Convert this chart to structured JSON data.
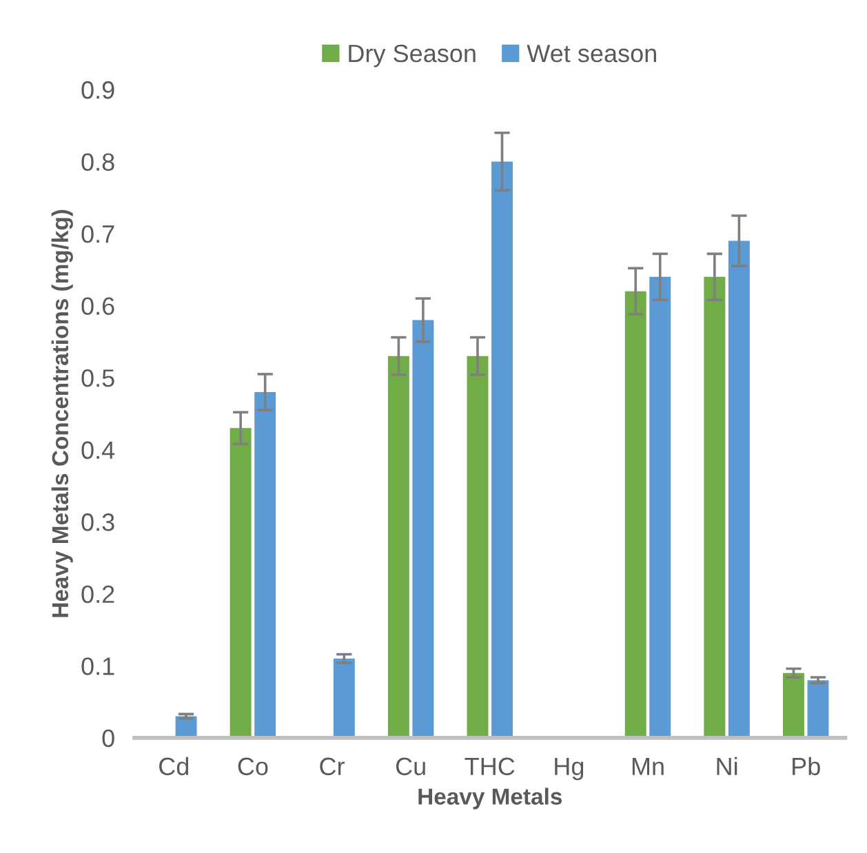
{
  "chart_data": {
    "type": "bar",
    "xlabel": "Heavy Metals",
    "ylabel": "Heavy Metals Concentrations (mg/kg)",
    "categories": [
      "Cd",
      "Co",
      "Cr",
      "Cu",
      "THC",
      "Hg",
      "Mn",
      "Ni",
      "Pb"
    ],
    "series": [
      {
        "name": "Dry Season",
        "color": "#70ad47",
        "values": [
          null,
          0.43,
          null,
          0.53,
          0.53,
          null,
          0.62,
          0.64,
          0.09
        ],
        "errors": [
          null,
          0.022,
          null,
          0.026,
          0.026,
          null,
          0.032,
          0.032,
          0.006
        ]
      },
      {
        "name": "Wet season",
        "color": "#5b9bd5",
        "values": [
          0.03,
          0.48,
          0.11,
          0.58,
          0.8,
          null,
          0.64,
          0.69,
          0.08
        ],
        "errors": [
          0.003,
          0.025,
          0.006,
          0.03,
          0.04,
          null,
          0.032,
          0.035,
          0.004
        ]
      }
    ],
    "ylim": [
      0,
      0.9
    ],
    "yticks": [
      0,
      0.1,
      0.2,
      0.3,
      0.4,
      0.5,
      0.6,
      0.7,
      0.8,
      0.9
    ],
    "grid": false,
    "legend": "top"
  }
}
